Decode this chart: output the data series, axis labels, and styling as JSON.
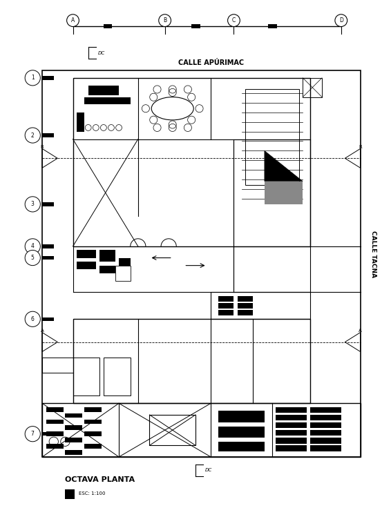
{
  "title": "OCTAVA PLANTA",
  "scale_text": "ESC: 1:100",
  "street_top": "CALLE APÚRIMAC",
  "street_right": "CALLE TACNA",
  "axis_labels_top": [
    "A",
    "B",
    "C",
    "D"
  ],
  "axis_labels_left": [
    "1",
    "2",
    "3",
    "4",
    "5",
    "6",
    "7"
  ],
  "bg_color": "#ffffff",
  "line_color": "#000000",
  "fig_width": 5.66,
  "fig_height": 7.36,
  "dpi": 100
}
